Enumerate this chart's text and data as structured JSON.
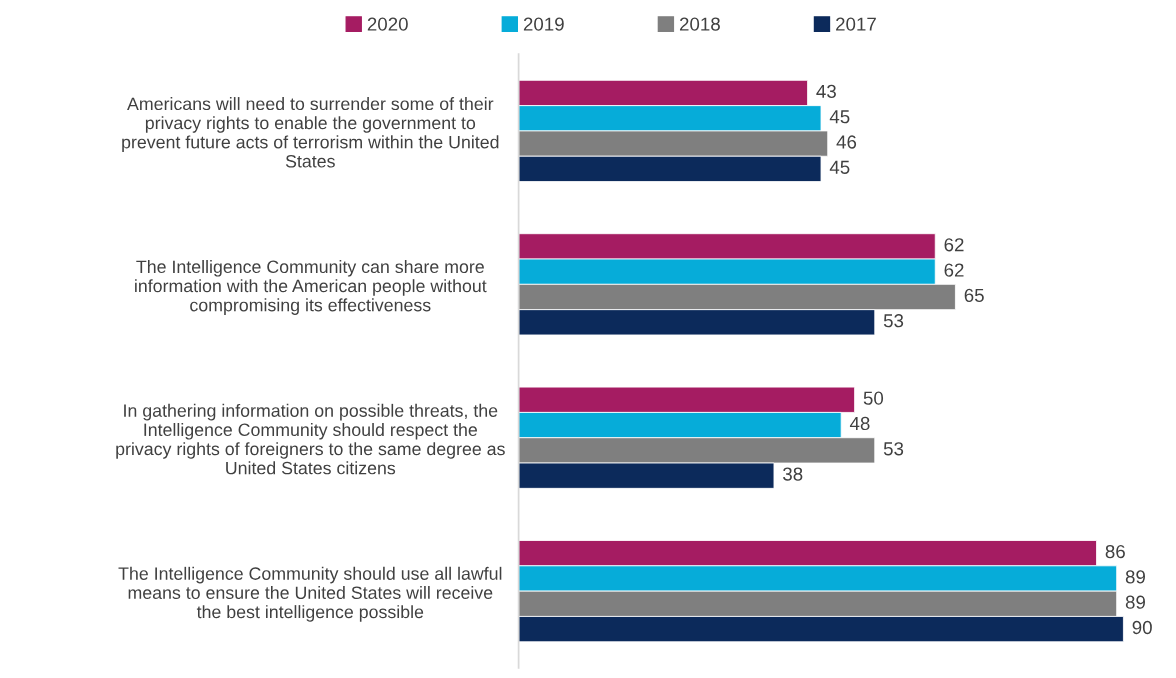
{
  "chart_data": {
    "type": "bar",
    "orientation": "horizontal",
    "data_labels": true,
    "legend": "top",
    "grid": false,
    "categories": [
      "Americans will need to surrender some of their\nprivacy rights to enable the government to\nprevent future acts of terrorism within the United\nStates",
      "The Intelligence Community can share more\ninformation with the American people without\ncompromising its effectiveness",
      "In gathering information on possible threats, the\nIntelligence Community should respect the\nprivacy rights of foreigners to the same degree as\nUnited States citizens",
      "The Intelligence Community should use all lawful\nmeans to ensure the United States will receive\nthe best intelligence possible"
    ],
    "series": [
      {
        "name": "2020",
        "color": "#a51c62",
        "values": [
          43,
          62,
          50,
          86
        ]
      },
      {
        "name": "2019",
        "color": "#06acd9",
        "values": [
          45,
          62,
          48,
          89
        ]
      },
      {
        "name": "2018",
        "color": "#7f7f7f",
        "values": [
          46,
          65,
          53,
          89
        ]
      },
      {
        "name": "2017",
        "color": "#0c2a5b",
        "values": [
          45,
          53,
          38,
          90
        ]
      }
    ]
  }
}
